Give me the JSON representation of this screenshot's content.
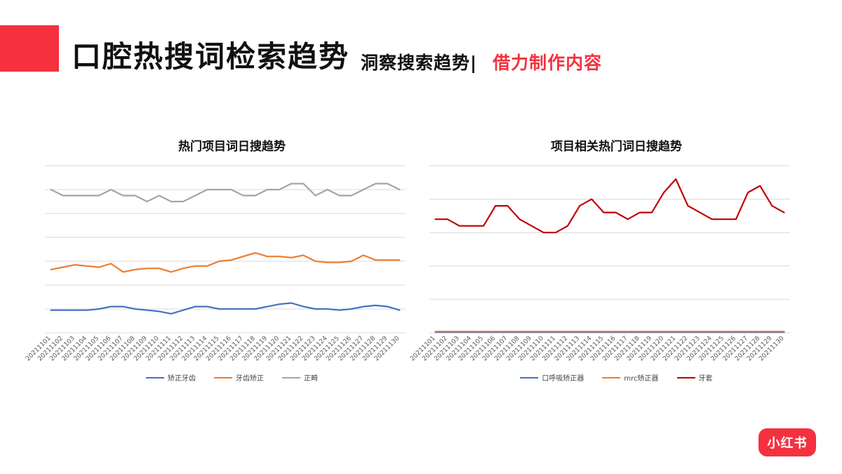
{
  "header": {
    "title": "口腔热搜词检索趋势",
    "subtitle": "洞察搜索趋势|",
    "subtitle_accent": "借力制作内容",
    "accent_color": "#f5313f"
  },
  "logo_text": "小红书",
  "chart_data": [
    {
      "type": "line",
      "title": "热门项目词日搜趋势",
      "xlabel": "",
      "ylabel": "",
      "grid": true,
      "legend_position": "bottom",
      "ylim": [
        0,
        14
      ],
      "categories": [
        "20211101",
        "20211102",
        "20211103",
        "20211104",
        "20211105",
        "20211106",
        "20211107",
        "20211108",
        "20211109",
        "20211110",
        "20211111",
        "20211112",
        "20211113",
        "20211114",
        "20211115",
        "20211116",
        "20211117",
        "20211118",
        "20211119",
        "20211120",
        "20211121",
        "20211122",
        "20211123",
        "20211124",
        "20211125",
        "20211126",
        "20211127",
        "20211128",
        "20211129",
        "20211130"
      ],
      "series": [
        {
          "name": "矫正牙齿",
          "color": "#4472c4",
          "values": [
            1.9,
            1.9,
            1.9,
            1.9,
            2.0,
            2.2,
            2.2,
            2.0,
            1.9,
            1.8,
            1.6,
            1.9,
            2.2,
            2.2,
            2.0,
            2.0,
            2.0,
            2.0,
            2.2,
            2.4,
            2.5,
            2.2,
            2.0,
            2.0,
            1.9,
            2.0,
            2.2,
            2.3,
            2.2,
            1.9
          ]
        },
        {
          "name": "牙齿矫正",
          "color": "#ed7d31",
          "values": [
            5.3,
            5.5,
            5.7,
            5.6,
            5.5,
            5.8,
            5.1,
            5.3,
            5.4,
            5.4,
            5.1,
            5.4,
            5.6,
            5.6,
            6.0,
            6.1,
            6.4,
            6.7,
            6.4,
            6.4,
            6.3,
            6.5,
            6.0,
            5.9,
            5.9,
            6.0,
            6.5,
            6.1,
            6.1,
            6.1
          ]
        },
        {
          "name": "正畸",
          "color": "#a5a5a5",
          "values": [
            12.0,
            11.5,
            11.5,
            11.5,
            11.5,
            12.0,
            11.5,
            11.5,
            11.0,
            11.5,
            11.0,
            11.0,
            11.5,
            12.0,
            12.0,
            12.0,
            11.5,
            11.5,
            12.0,
            12.0,
            12.5,
            12.5,
            11.5,
            12.0,
            11.5,
            11.5,
            12.0,
            12.5,
            12.5,
            12.0
          ]
        }
      ]
    },
    {
      "type": "line",
      "title": "项目相关热门词日搜趋势",
      "xlabel": "",
      "ylabel": "",
      "grid": true,
      "legend_position": "bottom",
      "ylim": [
        0,
        50
      ],
      "categories": [
        "20211101",
        "20211102",
        "20211103",
        "20211104",
        "20211105",
        "20211106",
        "20211107",
        "20211108",
        "20211109",
        "20211110",
        "20211111",
        "20211112",
        "20211113",
        "20211114",
        "20211115",
        "20211116",
        "20211117",
        "20211118",
        "20211119",
        "20211120",
        "20211121",
        "20211122",
        "20211123",
        "20211124",
        "20211125",
        "20211126",
        "20211127",
        "20211128",
        "20211129",
        "20211130"
      ],
      "series": [
        {
          "name": "口呼吸矫正器",
          "color": "#4472c4",
          "values": [
            0.2,
            0.2,
            0.2,
            0.2,
            0.2,
            0.2,
            0.2,
            0.2,
            0.2,
            0.2,
            0.2,
            0.2,
            0.2,
            0.2,
            0.2,
            0.2,
            0.2,
            0.2,
            0.2,
            0.2,
            0.2,
            0.2,
            0.2,
            0.2,
            0.2,
            0.2,
            0.2,
            0.2,
            0.2,
            0.2
          ]
        },
        {
          "name": "mrc矫正器",
          "color": "#ed7d31",
          "values": [
            0.4,
            0.4,
            0.4,
            0.4,
            0.4,
            0.4,
            0.4,
            0.4,
            0.4,
            0.4,
            0.4,
            0.4,
            0.4,
            0.4,
            0.4,
            0.4,
            0.4,
            0.4,
            0.4,
            0.4,
            0.4,
            0.4,
            0.4,
            0.4,
            0.4,
            0.4,
            0.4,
            0.4,
            0.4,
            0.4
          ]
        },
        {
          "name": "牙套",
          "color": "#c00000",
          "values": [
            34,
            34,
            32,
            32,
            32,
            38,
            38,
            34,
            32,
            30,
            30,
            32,
            38,
            40,
            36,
            36,
            34,
            36,
            36,
            42,
            46,
            38,
            36,
            34,
            34,
            34,
            42,
            44,
            38,
            36
          ]
        }
      ]
    }
  ]
}
